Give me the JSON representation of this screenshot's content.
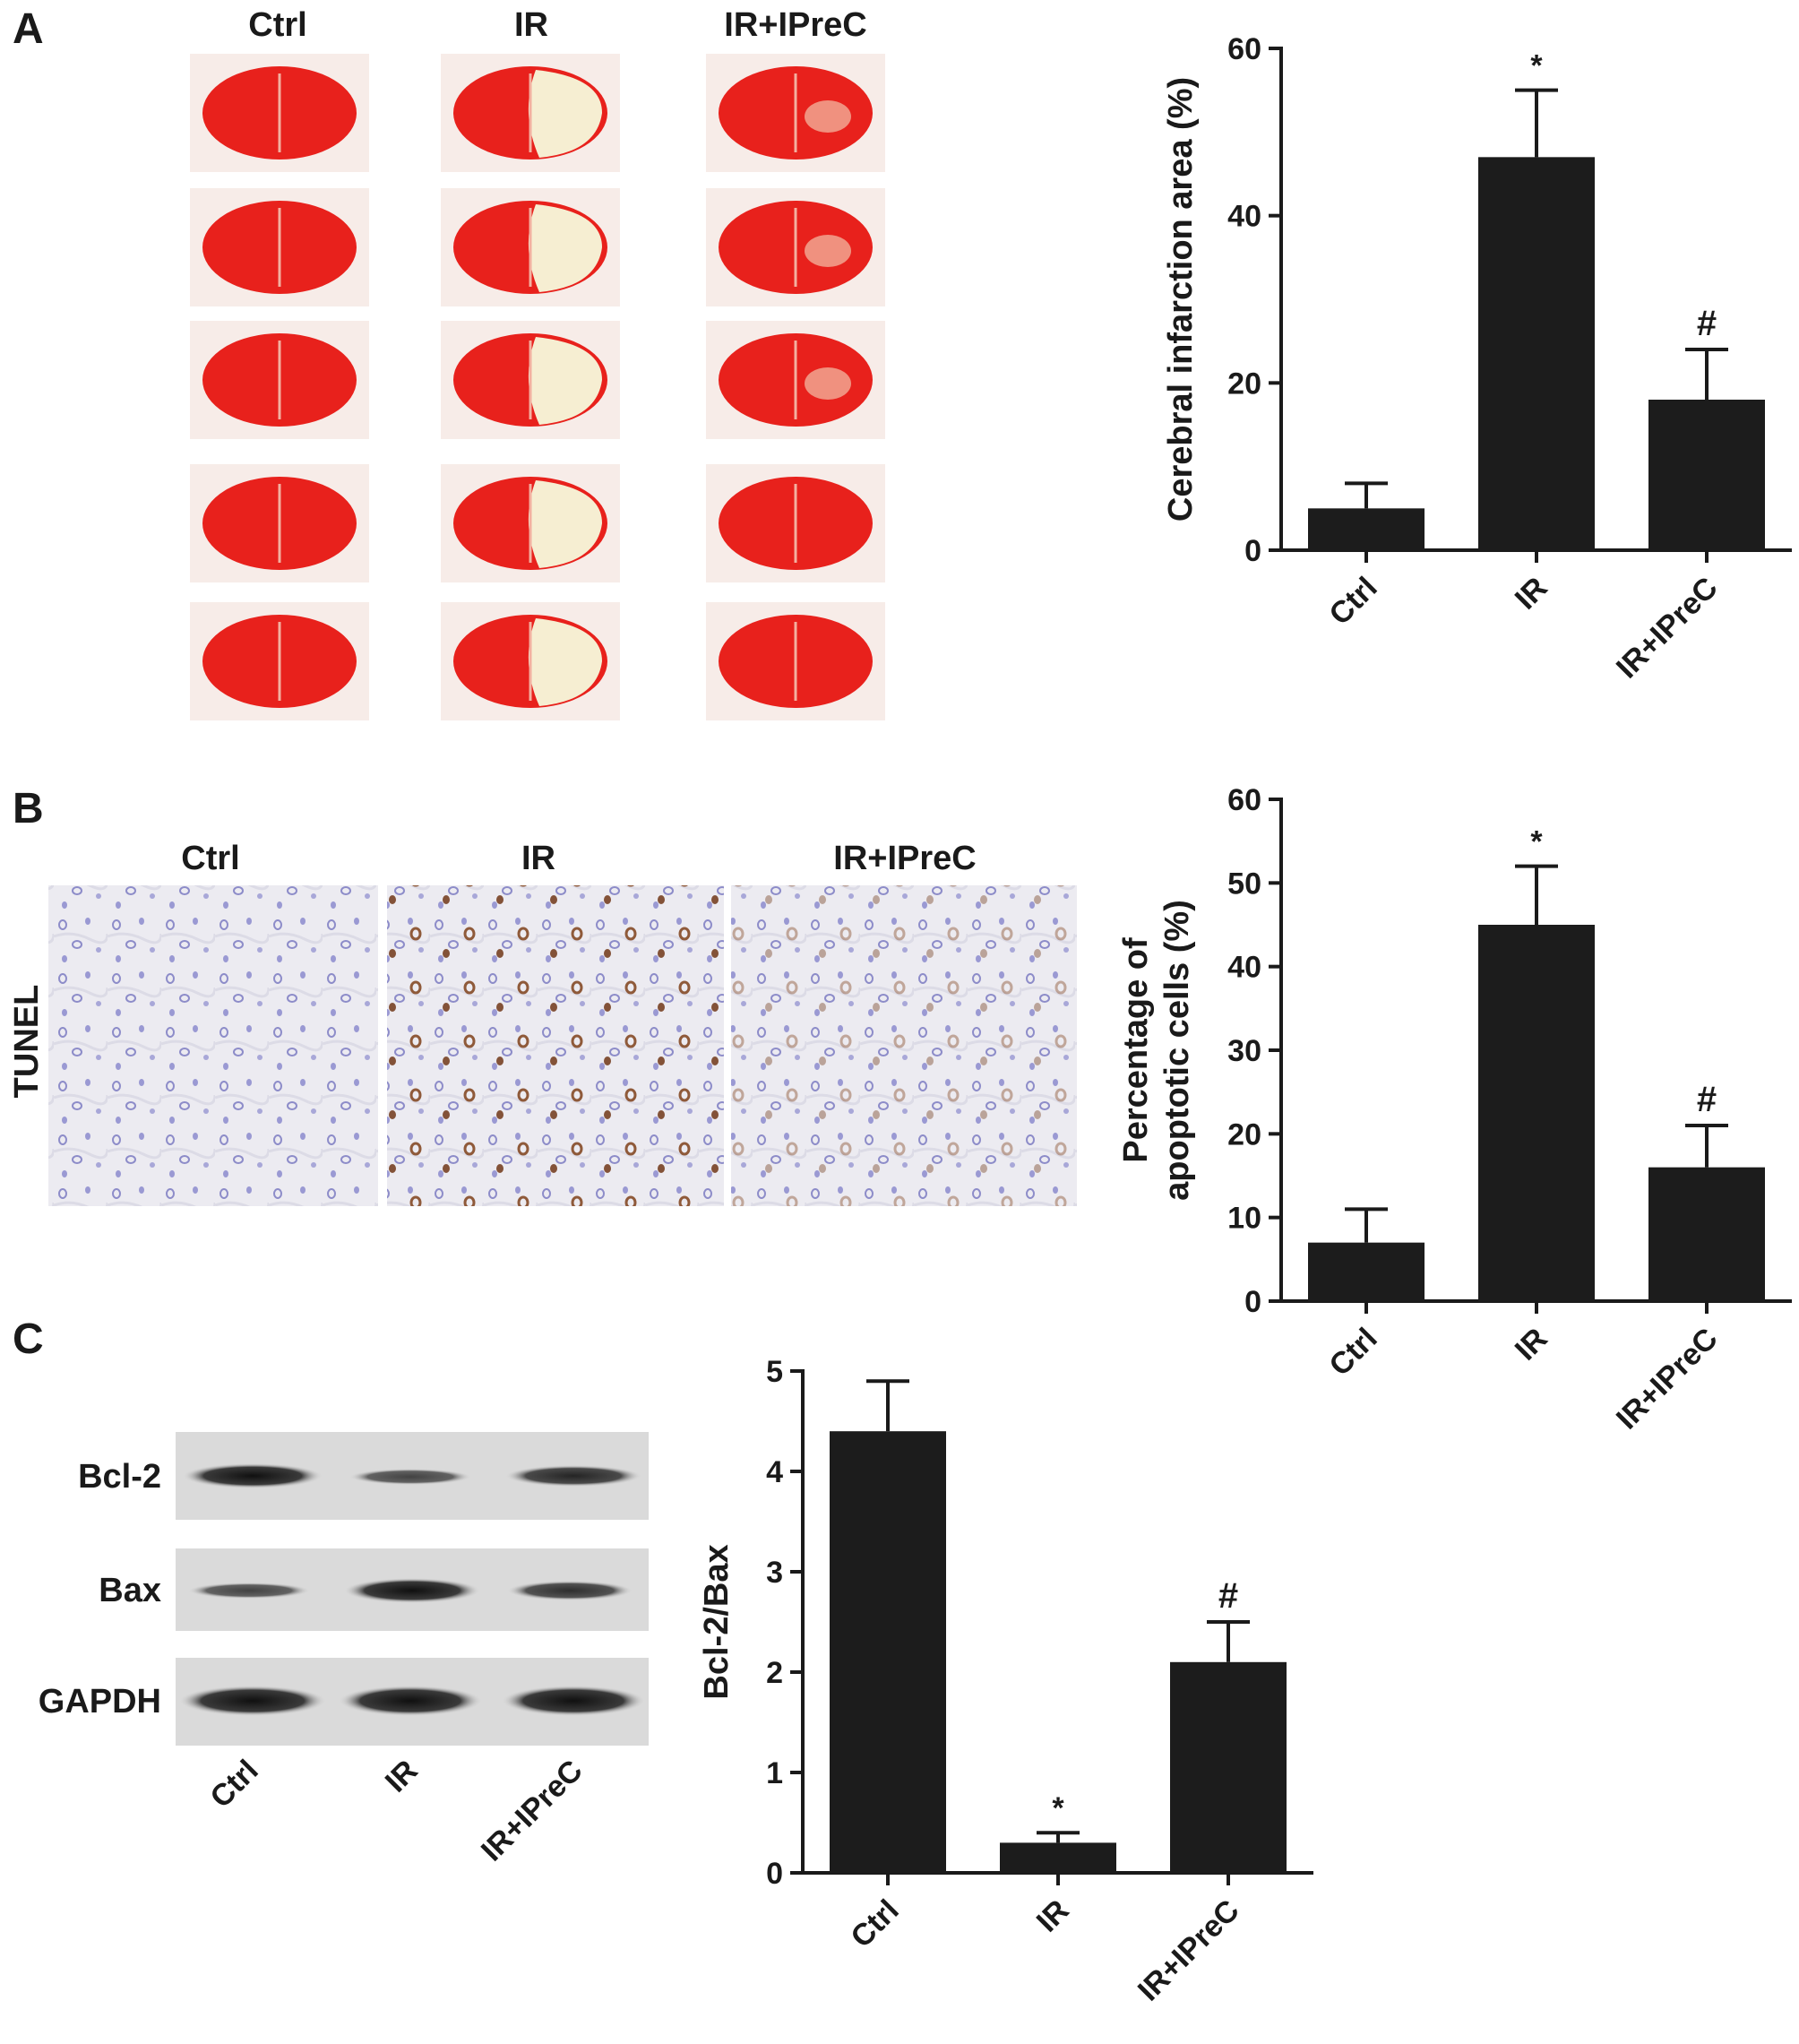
{
  "panels": {
    "a": {
      "letter": "A",
      "column_labels": [
        "Ctrl",
        "IR",
        "IR+IPreC"
      ],
      "section_colors": {
        "tissue": "#e8211c",
        "infarct": "#f6eed2",
        "background": "#f7ece8"
      }
    },
    "b": {
      "letter": "B",
      "column_labels": [
        "Ctrl",
        "IR",
        "IR+IPreC"
      ],
      "row_label": "TUNEL"
    },
    "c": {
      "letter": "C",
      "blot_rows": [
        "Bcl-2",
        "Bax",
        "GAPDH"
      ],
      "lane_labels": [
        "Ctrl",
        "IR",
        "IR+IPreC"
      ]
    }
  },
  "chart_data": [
    {
      "type": "bar",
      "categories": [
        "Ctrl",
        "IR",
        "IR+IPreC"
      ],
      "values": [
        5,
        47,
        18
      ],
      "errors": [
        3,
        8,
        6
      ],
      "annotations": [
        "",
        "*",
        "#"
      ],
      "ylabel": "Cerebral infarction area (%)",
      "ylim": [
        0,
        60
      ],
      "yticks": [
        0,
        20,
        40,
        60
      ],
      "bar_color": "#1c1c1c"
    },
    {
      "type": "bar",
      "categories": [
        "Ctrl",
        "IR",
        "IR+IPreC"
      ],
      "values": [
        7,
        45,
        16
      ],
      "errors": [
        4,
        7,
        5
      ],
      "annotations": [
        "",
        "*",
        "#"
      ],
      "ylabel": "Percentage of\napoptotic cells (%)",
      "ylim": [
        0,
        60
      ],
      "yticks": [
        0,
        10,
        20,
        30,
        40,
        50,
        60
      ],
      "bar_color": "#1c1c1c"
    },
    {
      "type": "bar",
      "categories": [
        "Ctrl",
        "IR",
        "IR+IPreC"
      ],
      "values": [
        4.4,
        0.3,
        2.1
      ],
      "errors": [
        0.5,
        0.1,
        0.4
      ],
      "annotations": [
        "",
        "*",
        "#"
      ],
      "ylabel": "Bcl-2/Bax",
      "ylim": [
        0,
        5
      ],
      "yticks": [
        0,
        1,
        2,
        3,
        4,
        5
      ],
      "bar_color": "#1c1c1c"
    }
  ]
}
